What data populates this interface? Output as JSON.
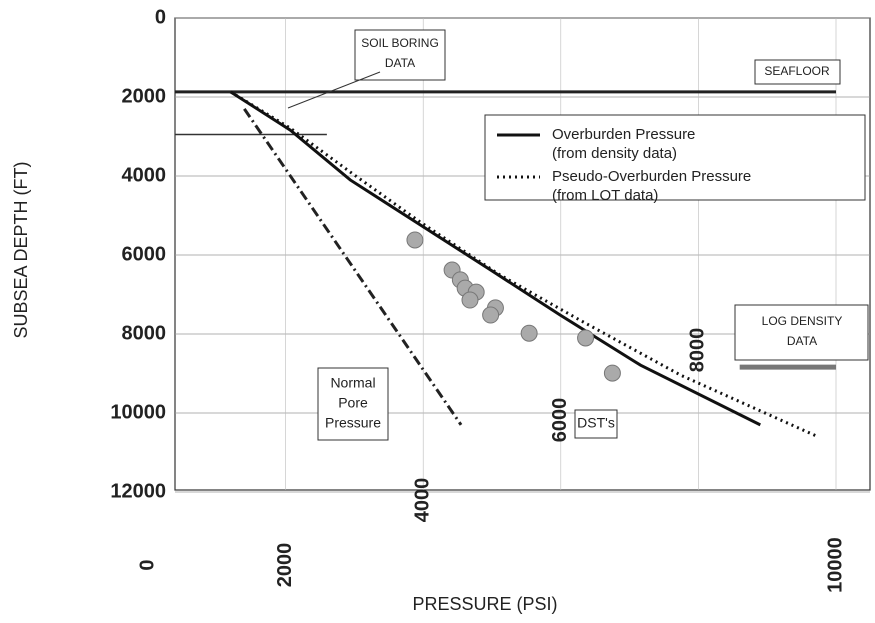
{
  "chart_data": {
    "type": "line",
    "xlabel": "PRESSURE (PSI)",
    "ylabel": "SUBSEA DEPTH (FT)",
    "xlim": [
      0,
      10000
    ],
    "xticks": [
      0,
      2000,
      4000,
      6000,
      8000,
      10000
    ],
    "ylim": [
      0,
      12000
    ],
    "yticks": [
      0,
      2000,
      4000,
      6000,
      8000,
      10000,
      12000
    ],
    "y_inverted": true,
    "grid": true,
    "legend": "upper right",
    "series": [
      {
        "name": "Overburden Pressure",
        "name2": "(from density data)",
        "style": "solid",
        "color": "#111111",
        "x": [
          1200,
          2070,
          2940,
          3960,
          4980,
          5990,
          7160,
          8900
        ],
        "values": [
          1870,
          2840,
          4100,
          5240,
          6380,
          7520,
          8790,
          10300
        ]
      },
      {
        "name": "Pseudo-Overburden Pressure",
        "name2": "(from LOT data)",
        "style": "dotted",
        "color": "#111111",
        "x": [
          1200,
          2070,
          2940,
          3960,
          5120,
          6280,
          7740,
          9750
        ],
        "values": [
          1870,
          2790,
          3900,
          5170,
          6510,
          7650,
          9040,
          10610
        ]
      },
      {
        "style": "dash-dot",
        "color": "#222222",
        "x": [
          1400,
          4550
        ],
        "values": [
          2300,
          10300
        ]
      },
      {
        "style": "markers",
        "color": "#aaaaaa",
        "x": [
          3880,
          4420,
          4540,
          4610,
          4770,
          4680,
          5050,
          4980,
          5540,
          6360,
          6750
        ],
        "values": [
          5620,
          6380,
          6630,
          6840,
          6940,
          7140,
          7340,
          7520,
          7980,
          8100,
          8990
        ]
      }
    ],
    "reference_lines": [
      {
        "value": 1870,
        "x": [
          0,
          10000
        ],
        "color": "#222222"
      },
      {
        "value": 2950,
        "x": [
          0,
          2600
        ],
        "color": "#333333"
      },
      {
        "value": 8840,
        "x": [
          8600,
          10000
        ],
        "color": "#777777"
      }
    ],
    "annotations": [
      "SOIL BORING",
      "DATA",
      "SEAFLOOR",
      "LOG DENSITY",
      "DATA",
      "Normal",
      "Pore",
      "Pressure",
      "DST's"
    ]
  }
}
